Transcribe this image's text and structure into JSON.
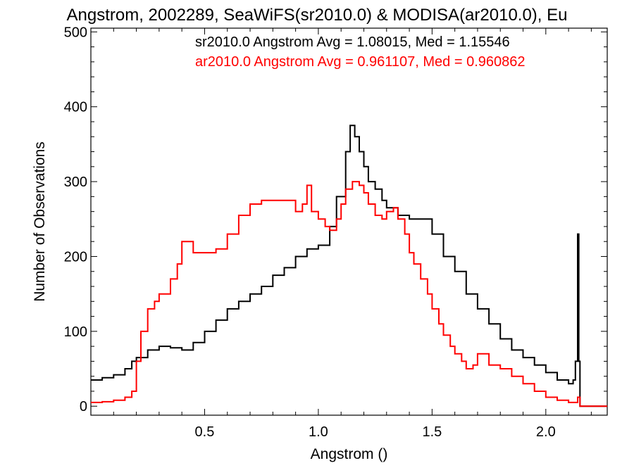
{
  "chart_data": {
    "type": "histogram",
    "title": "Angstrom, 2002289, SeaWiFS(sr2010.0) & MODISA(ar2010.0), Eu",
    "xlabel": "Angstrom ()",
    "ylabel": "Number of Observations",
    "xlim": [
      0.0,
      2.27
    ],
    "ylim": [
      -12,
      505
    ],
    "x_ticks": [
      0.5,
      1.0,
      1.5,
      2.0
    ],
    "x_tick_labels": [
      "0.5",
      "1.0",
      "1.5",
      "2.0"
    ],
    "y_ticks": [
      0,
      100,
      200,
      300,
      400,
      500
    ],
    "y_tick_labels": [
      "0",
      "100",
      "200",
      "300",
      "400",
      "500"
    ],
    "grid": false,
    "legend_placement": "top-right",
    "annotations": [
      {
        "text": "sr2010.0 Angstrom Avg = 1.08015, Med = 1.15546",
        "color": "#000000"
      },
      {
        "text": "ar2010.0 Angstrom Avg = 0.961107, Med = 0.960862",
        "color": "#ff0000"
      }
    ],
    "series": [
      {
        "color": "#000000",
        "x": [
          0.0,
          0.05,
          0.1,
          0.15,
          0.18,
          0.2,
          0.25,
          0.3,
          0.35,
          0.4,
          0.45,
          0.5,
          0.55,
          0.6,
          0.65,
          0.7,
          0.75,
          0.8,
          0.85,
          0.9,
          0.95,
          1.0,
          1.05,
          1.08,
          1.12,
          1.14,
          1.16,
          1.18,
          1.2,
          1.22,
          1.25,
          1.28,
          1.3,
          1.35,
          1.4,
          1.45,
          1.5,
          1.55,
          1.6,
          1.65,
          1.7,
          1.75,
          1.8,
          1.85,
          1.9,
          1.95,
          2.0,
          2.05,
          2.1,
          2.12,
          2.13,
          2.14,
          2.145,
          2.15,
          2.16,
          2.27
        ],
        "y": [
          35,
          38,
          42,
          50,
          60,
          65,
          75,
          80,
          78,
          75,
          85,
          100,
          115,
          130,
          140,
          150,
          160,
          175,
          185,
          200,
          210,
          215,
          240,
          280,
          340,
          375,
          360,
          340,
          320,
          300,
          290,
          275,
          265,
          255,
          250,
          250,
          230,
          200,
          180,
          150,
          130,
          110,
          90,
          75,
          65,
          55,
          45,
          35,
          30,
          35,
          60,
          230,
          60,
          0,
          0,
          0
        ]
      },
      {
        "color": "#ff0000",
        "x": [
          0.0,
          0.05,
          0.1,
          0.15,
          0.18,
          0.2,
          0.22,
          0.25,
          0.28,
          0.3,
          0.35,
          0.38,
          0.4,
          0.45,
          0.5,
          0.55,
          0.6,
          0.65,
          0.7,
          0.75,
          0.8,
          0.85,
          0.9,
          0.93,
          0.95,
          0.97,
          1.0,
          1.03,
          1.05,
          1.08,
          1.1,
          1.12,
          1.15,
          1.18,
          1.2,
          1.22,
          1.25,
          1.28,
          1.3,
          1.33,
          1.35,
          1.38,
          1.4,
          1.42,
          1.45,
          1.48,
          1.5,
          1.53,
          1.55,
          1.58,
          1.6,
          1.63,
          1.65,
          1.68,
          1.7,
          1.75,
          1.8,
          1.85,
          1.9,
          1.95,
          2.0,
          2.05,
          2.1,
          2.14,
          2.15,
          2.27
        ],
        "y": [
          5,
          6,
          8,
          12,
          20,
          60,
          100,
          130,
          140,
          150,
          170,
          190,
          220,
          205,
          205,
          210,
          230,
          255,
          270,
          275,
          275,
          275,
          260,
          270,
          295,
          260,
          250,
          240,
          235,
          250,
          270,
          290,
          300,
          295,
          285,
          270,
          255,
          250,
          260,
          265,
          250,
          230,
          205,
          190,
          170,
          150,
          130,
          110,
          95,
          80,
          70,
          60,
          50,
          55,
          70,
          55,
          50,
          40,
          30,
          20,
          12,
          8,
          5,
          12,
          0,
          0
        ]
      }
    ]
  }
}
